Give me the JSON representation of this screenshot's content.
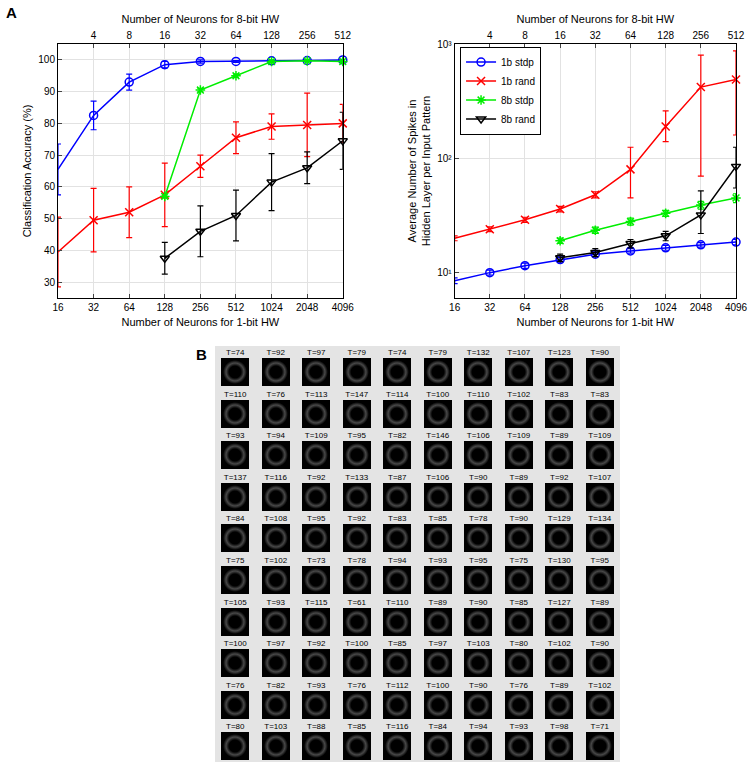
{
  "panel_a_label": "A",
  "chart_data": [
    {
      "type": "line",
      "xlabel": "Number of Neurons for 1-bit HW",
      "ylabel": "Classification Accuracy (%)",
      "x2label": "Number of Neurons for 8-bit HW",
      "log": "x",
      "grid": true,
      "x": [
        16,
        32,
        64,
        128,
        256,
        512,
        1024,
        2048,
        4096
      ],
      "xlim": [
        16,
        4096
      ],
      "xticks": [
        16,
        32,
        64,
        128,
        256,
        512,
        1024,
        2048,
        4096
      ],
      "x2lim": [
        2,
        512
      ],
      "x2ticks": [
        4,
        8,
        16,
        32,
        64,
        128,
        256,
        512
      ],
      "ylim": [
        25,
        105
      ],
      "yticks": [
        30,
        40,
        50,
        60,
        70,
        80,
        90,
        100
      ],
      "series": [
        {
          "name": "1b stdp",
          "color": "#0000ff",
          "marker": "circle",
          "values": [
            65.5,
            82.5,
            93,
            98.5,
            99.5,
            99.5,
            99.7,
            99.8,
            100
          ],
          "error": [
            8,
            4.5,
            2.5,
            1,
            0.5,
            0.3,
            0.2,
            0.2,
            0.2
          ]
        },
        {
          "name": "1b rand",
          "color": "#ff0000",
          "marker": "x",
          "values": [
            39.5,
            49.5,
            52,
            57.5,
            66.5,
            75.5,
            79,
            79.5,
            80
          ],
          "error": [
            11,
            10,
            8,
            10,
            3.5,
            5,
            4,
            10,
            6
          ]
        },
        {
          "name": "8b stdp",
          "color": "#00ee00",
          "marker": "asterisk",
          "values": [
            null,
            null,
            null,
            57,
            90.5,
            95,
            99.5,
            99.7,
            99.5
          ],
          "error": [
            null,
            null,
            null,
            0.5,
            0.5,
            0.5,
            0.3,
            0.2,
            0.3
          ]
        },
        {
          "name": "8b rand",
          "color": "#000000",
          "marker": "triangle-down",
          "values": [
            null,
            null,
            null,
            37.5,
            46,
            51,
            61.5,
            66,
            74.5
          ],
          "error": [
            null,
            null,
            null,
            5,
            8,
            8,
            9,
            5,
            9
          ]
        }
      ]
    },
    {
      "type": "line",
      "xlabel": "Number of Neurons for 1-bit HW",
      "ylabel": "Average Number of Spikes in Hidden Layer per Input Pattern",
      "x2label": "Number of Neurons for 8-bit HW",
      "log": true,
      "grid": true,
      "legend": "upper left",
      "x": [
        16,
        32,
        64,
        128,
        256,
        512,
        1024,
        2048,
        4096
      ],
      "xlim": [
        16,
        4096
      ],
      "xticks": [
        16,
        32,
        64,
        128,
        256,
        512,
        1024,
        2048,
        4096
      ],
      "x2lim": [
        2,
        512
      ],
      "x2ticks": [
        4,
        8,
        16,
        32,
        64,
        128,
        256,
        512
      ],
      "ylim": [
        6,
        1000
      ],
      "yticks": [
        {
          "value": 10,
          "label": "10¹"
        },
        {
          "value": 100,
          "label": "10²"
        },
        {
          "value": 1000,
          "label": "10³"
        }
      ],
      "series": [
        {
          "name": "1b stdp",
          "color": "#0000ff",
          "marker": "circle",
          "values": [
            8.5,
            10,
            11.5,
            13,
            14.5,
            15.5,
            16.5,
            17.5,
            18.5
          ],
          "error_plus": [
            0.5,
            0.5,
            0.6,
            0.6,
            0.7,
            0.7,
            0.8,
            0.8,
            1
          ],
          "error_minus": [
            0.5,
            0.5,
            0.6,
            0.6,
            0.7,
            0.7,
            0.8,
            0.8,
            1
          ]
        },
        {
          "name": "1b rand",
          "color": "#ff0000",
          "marker": "x",
          "values": [
            20,
            24,
            29,
            36,
            48,
            80,
            190,
            420,
            490
          ],
          "error_plus": [
            1,
            1.2,
            1.5,
            2,
            3,
            45,
            70,
            380,
            380
          ],
          "error_minus": [
            1,
            1.2,
            1.5,
            2,
            3,
            35,
            50,
            350,
            330
          ]
        },
        {
          "name": "8b stdp",
          "color": "#00ee00",
          "marker": "asterisk",
          "values": [
            null,
            null,
            null,
            19,
            23.5,
            28,
            33,
            39,
            45
          ],
          "error_plus": [
            null,
            null,
            null,
            1,
            1.5,
            2,
            2,
            3,
            4
          ],
          "error_minus": [
            null,
            null,
            null,
            1,
            1.5,
            2,
            2,
            3,
            4
          ]
        },
        {
          "name": "8b rand",
          "color": "#000000",
          "marker": "triangle-down",
          "values": [
            null,
            null,
            null,
            13.5,
            15,
            18,
            21,
            32,
            85
          ],
          "error_plus": [
            null,
            null,
            null,
            1,
            1.2,
            1.5,
            2,
            20,
            40
          ],
          "error_minus": [
            null,
            null,
            null,
            1,
            1.2,
            1.5,
            2,
            10,
            30
          ]
        }
      ]
    }
  ],
  "panel_b": {
    "label": "B",
    "cell_labels": [
      [
        "T=74",
        "T=92",
        "T=97",
        "T=79",
        "T=74",
        "T=79",
        "T=132",
        "T=107",
        "T=123",
        "T=90"
      ],
      [
        "T=110",
        "T=76",
        "T=113",
        "T=147",
        "T=114",
        "T=100",
        "T=110",
        "T=102",
        "T=83",
        "T=83"
      ],
      [
        "T=93",
        "T=94",
        "T=109",
        "T=95",
        "T=82",
        "T=146",
        "T=106",
        "T=109",
        "T=89",
        "T=109"
      ],
      [
        "T=137",
        "T=116",
        "T=92",
        "T=133",
        "T=87",
        "T=106",
        "T=90",
        "T=89",
        "T=92",
        "T=107"
      ],
      [
        "T=84",
        "T=108",
        "T=95",
        "T=92",
        "T=83",
        "T=85",
        "T=78",
        "T=90",
        "T=129",
        "T=134"
      ],
      [
        "T=75",
        "T=102",
        "T=73",
        "T=78",
        "T=94",
        "T=93",
        "T=95",
        "T=75",
        "T=130",
        "T=95"
      ],
      [
        "T=105",
        "T=93",
        "T=115",
        "T=61",
        "T=110",
        "T=89",
        "T=90",
        "T=85",
        "T=127",
        "T=89"
      ],
      [
        "T=100",
        "T=97",
        "T=92",
        "T=100",
        "T=85",
        "T=97",
        "T=103",
        "T=80",
        "T=102",
        "T=90"
      ],
      [
        "T=76",
        "T=82",
        "T=93",
        "T=76",
        "T=112",
        "T=100",
        "T=90",
        "T=76",
        "T=89",
        "T=102"
      ],
      [
        "T=80",
        "T=103",
        "T=88",
        "T=85",
        "T=116",
        "T=84",
        "T=94",
        "T=93",
        "T=98",
        "T=71"
      ]
    ]
  }
}
